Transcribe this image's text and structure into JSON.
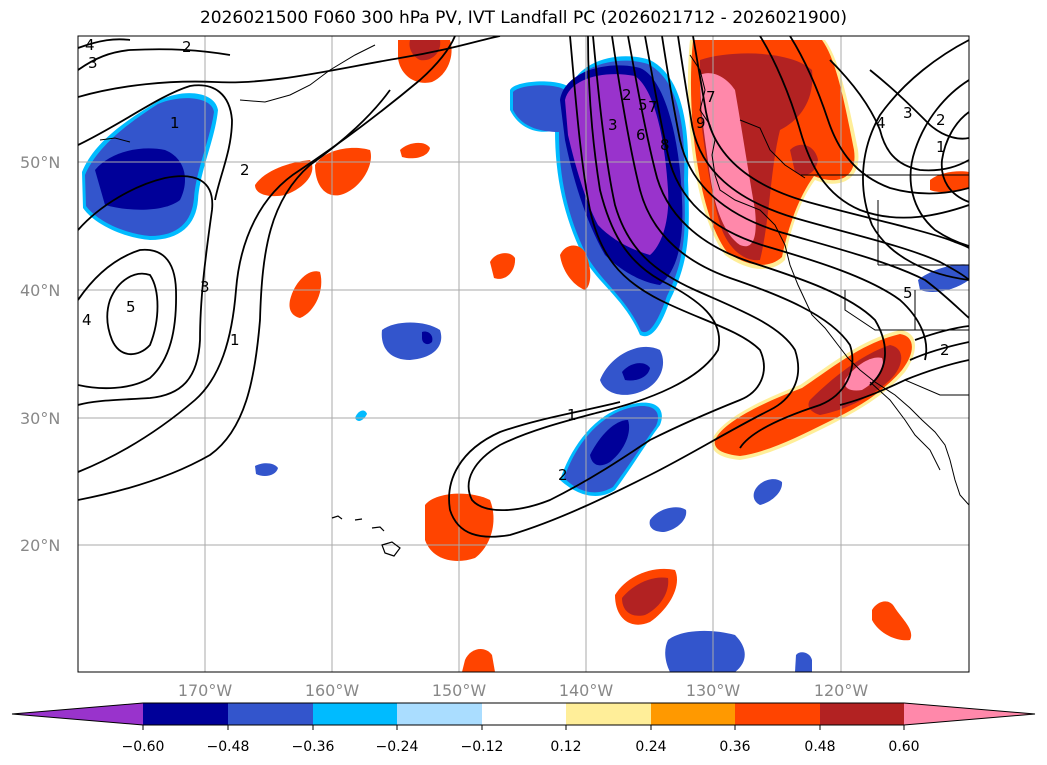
{
  "title": "2026021500 F060 300 hPa PV, IVT Landfall PC (2026021712 - 2026021900)",
  "lat_labels": [
    "50°N",
    "40°N",
    "30°N",
    "20°N"
  ],
  "lon_labels": [
    "170°W",
    "160°W",
    "150°W",
    "140°W",
    "130°W",
    "120°W"
  ],
  "colorbar": {
    "ticks": [
      "−0.60",
      "−0.48",
      "−0.36",
      "−0.24",
      "−0.12",
      "0.12",
      "0.24",
      "0.36",
      "0.48",
      "0.60"
    ],
    "colors": [
      "#9933cc",
      "#000099",
      "#3355cc",
      "#00bbff",
      "#aaddff",
      "#ffffff",
      "#ffee99",
      "#ff9900",
      "#ff4400",
      "#b22222",
      "#ff88aa"
    ]
  },
  "contour_labels": {
    "c1": "4",
    "c2": "3",
    "c3": "2",
    "c4": "1",
    "c5": "5",
    "c6": "4",
    "c7": "3",
    "c8": "2",
    "c9": "1",
    "c10": "3",
    "c11": "2",
    "c12": "5",
    "c13": "6",
    "c14": "7",
    "c15": "8",
    "c16": "4",
    "c17": "3",
    "c18": "2",
    "c19": "1",
    "c20": "5",
    "c21": "2",
    "c22": "1",
    "c23": "2",
    "c24": "9",
    "c25": "7"
  }
}
